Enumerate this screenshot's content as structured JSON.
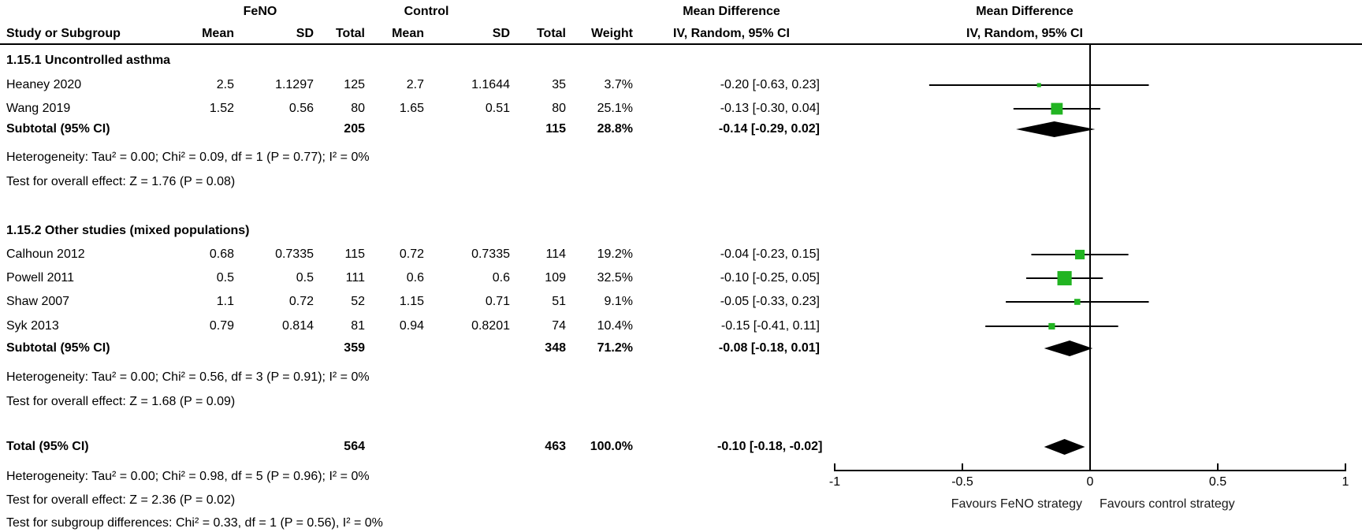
{
  "figure": {
    "columns_header": {
      "group1": "FeNO",
      "group2": "Control",
      "study": "Study or Subgroup",
      "mean": "Mean",
      "sd": "SD",
      "total": "Total",
      "weight": "Weight",
      "effect_col_title": "Mean Difference",
      "effect_col_subtitle": "IV, Random, 95% CI",
      "plot_title": "Mean Difference",
      "plot_subtitle": "IV, Random, 95% CI"
    }
  },
  "chart_data": {
    "type": "scatter",
    "subtype": "forest-plot",
    "title": "Mean Difference IV, Random, 95% CI",
    "xlim": [
      -1,
      1
    ],
    "x_ticks": [
      {
        "v": -1,
        "label": "-1"
      },
      {
        "v": -0.5,
        "label": "-0.5"
      },
      {
        "v": 0,
        "label": "0"
      },
      {
        "v": 0.5,
        "label": "0.5"
      },
      {
        "v": 1,
        "label": "1"
      }
    ],
    "xlabel_left": "Favours FeNO strategy",
    "xlabel_right": "Favours control strategy",
    "marker_color": "#22b422",
    "line_color": "#000000",
    "rows": [
      {
        "id": "sec1",
        "type": "section",
        "study": "1.15.1 Uncontrolled asthma"
      },
      {
        "id": "heaney",
        "type": "study",
        "study": "Heaney 2020",
        "mean1": "2.5",
        "sd1": "1.1297",
        "total1": "125",
        "mean2": "2.7",
        "sd2": "1.1644",
        "total2": "35",
        "weight": "3.7%",
        "ci": "-0.20 [-0.63, 0.23]",
        "md": -0.2,
        "lo": -0.63,
        "hi": 0.23,
        "wpct": 3.7
      },
      {
        "id": "wang",
        "type": "study",
        "study": "Wang 2019",
        "mean1": "1.52",
        "sd1": "0.56",
        "total1": "80",
        "mean2": "1.65",
        "sd2": "0.51",
        "total2": "80",
        "weight": "25.1%",
        "ci": "-0.13 [-0.30, 0.04]",
        "md": -0.13,
        "lo": -0.3,
        "hi": 0.04,
        "wpct": 25.1
      },
      {
        "id": "sub1",
        "type": "subtotal",
        "study": "Subtotal (95% CI)",
        "total1": "205",
        "total2": "115",
        "weight": "28.8%",
        "ci": "-0.14 [-0.29, 0.02]",
        "md": -0.14,
        "lo": -0.29,
        "hi": 0.02
      },
      {
        "id": "het1",
        "type": "note",
        "study": "Heterogeneity: Tau² = 0.00; Chi² = 0.09, df = 1 (P = 0.77); I² = 0%"
      },
      {
        "id": "test1",
        "type": "note",
        "study": "Test for overall effect: Z = 1.76 (P = 0.08)"
      },
      {
        "id": "sec2",
        "type": "section",
        "study": "1.15.2 Other studies (mixed populations)"
      },
      {
        "id": "calhoun",
        "type": "study",
        "study": "Calhoun 2012",
        "mean1": "0.68",
        "sd1": "0.7335",
        "total1": "115",
        "mean2": "0.72",
        "sd2": "0.7335",
        "total2": "114",
        "weight": "19.2%",
        "ci": "-0.04 [-0.23, 0.15]",
        "md": -0.04,
        "lo": -0.23,
        "hi": 0.15,
        "wpct": 19.2
      },
      {
        "id": "powell",
        "type": "study",
        "study": "Powell 2011",
        "mean1": "0.5",
        "sd1": "0.5",
        "total1": "111",
        "mean2": "0.6",
        "sd2": "0.6",
        "total2": "109",
        "weight": "32.5%",
        "ci": "-0.10 [-0.25, 0.05]",
        "md": -0.1,
        "lo": -0.25,
        "hi": 0.05,
        "wpct": 32.5
      },
      {
        "id": "shaw",
        "type": "study",
        "study": "Shaw 2007",
        "mean1": "1.1",
        "sd1": "0.72",
        "total1": "52",
        "mean2": "1.15",
        "sd2": "0.71",
        "total2": "51",
        "weight": "9.1%",
        "ci": "-0.05 [-0.33, 0.23]",
        "md": -0.05,
        "lo": -0.33,
        "hi": 0.23,
        "wpct": 9.1
      },
      {
        "id": "syk",
        "type": "study",
        "study": "Syk 2013",
        "mean1": "0.79",
        "sd1": "0.814",
        "total1": "81",
        "mean2": "0.94",
        "sd2": "0.8201",
        "total2": "74",
        "weight": "10.4%",
        "ci": "-0.15 [-0.41, 0.11]",
        "md": -0.15,
        "lo": -0.41,
        "hi": 0.11,
        "wpct": 10.4
      },
      {
        "id": "sub2",
        "type": "subtotal",
        "study": "Subtotal (95% CI)",
        "total1": "359",
        "total2": "348",
        "weight": "71.2%",
        "ci": "-0.08 [-0.18, 0.01]",
        "md": -0.08,
        "lo": -0.18,
        "hi": 0.01
      },
      {
        "id": "het2",
        "type": "note",
        "study": "Heterogeneity: Tau² = 0.00; Chi² = 0.56, df = 3 (P = 0.91); I² = 0%"
      },
      {
        "id": "test2",
        "type": "note",
        "study": "Test for overall effect: Z = 1.68 (P = 0.09)"
      },
      {
        "id": "total",
        "type": "total",
        "study": "Total (95% CI)",
        "total1": "564",
        "total2": "463",
        "weight": "100.0%",
        "ci": "-0.10 [-0.18, -0.02]",
        "md": -0.1,
        "lo": -0.18,
        "hi": -0.02
      },
      {
        "id": "het3",
        "type": "note",
        "study": "Heterogeneity: Tau² = 0.00; Chi² = 0.98, df = 5 (P = 0.96); I² = 0%"
      },
      {
        "id": "test3",
        "type": "note",
        "study": "Test for overall effect: Z = 2.36 (P = 0.02)"
      },
      {
        "id": "testsub",
        "type": "note",
        "study": "Test for subgroup differences: Chi² = 0.33, df = 1 (P = 0.56), I² = 0%"
      }
    ]
  }
}
